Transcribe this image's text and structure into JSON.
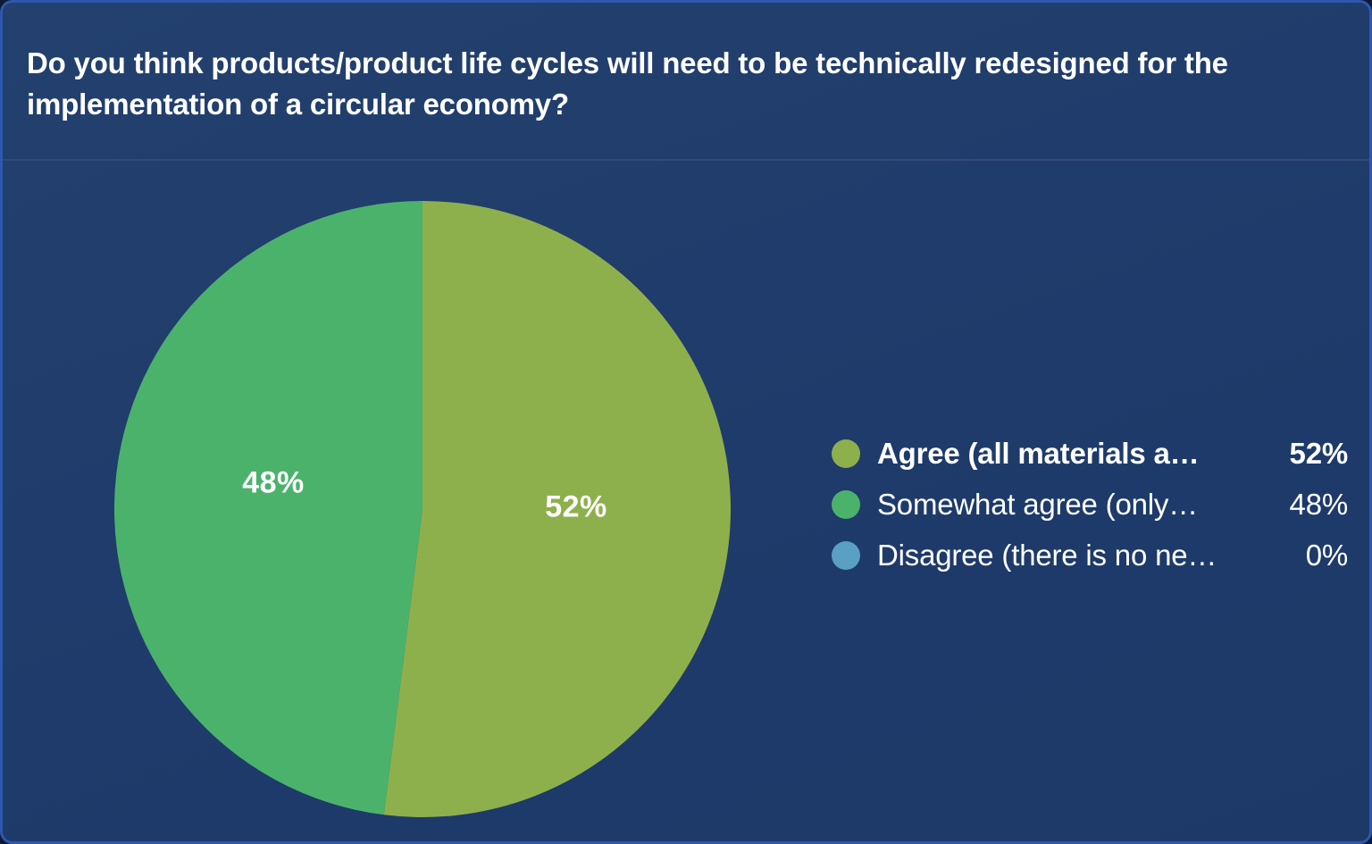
{
  "header": {
    "title": "Do you think products/product life cycles will need to be technically redesigned for the implementation of a circular economy?"
  },
  "legend": {
    "items": [
      {
        "label": "Agree (all materials a…",
        "value": "52%",
        "color": "#8EB04C",
        "emphasized": true
      },
      {
        "label": "Somewhat agree (only…",
        "value": "48%",
        "color": "#4BB26C",
        "emphasized": false
      },
      {
        "label": "Disagree (there is no ne…",
        "value": "0%",
        "color": "#5AA0C4",
        "emphasized": false
      }
    ]
  },
  "chart_data": {
    "type": "pie",
    "title": "Do you think products/product life cycles will need to be technically redesigned for the implementation of a circular economy?",
    "categories": [
      "Agree (all materials a…",
      "Somewhat agree (only…",
      "Disagree (there is no ne…"
    ],
    "values": [
      52,
      48,
      0
    ],
    "unit": "%",
    "colors": [
      "#8EB04C",
      "#4BB26C",
      "#5AA0C4"
    ],
    "slice_value_labels": [
      "52%",
      "48%"
    ],
    "start_angle_deg": 0,
    "direction": "clockwise",
    "legend_position": "right",
    "background_color": "#1F3B6B"
  }
}
